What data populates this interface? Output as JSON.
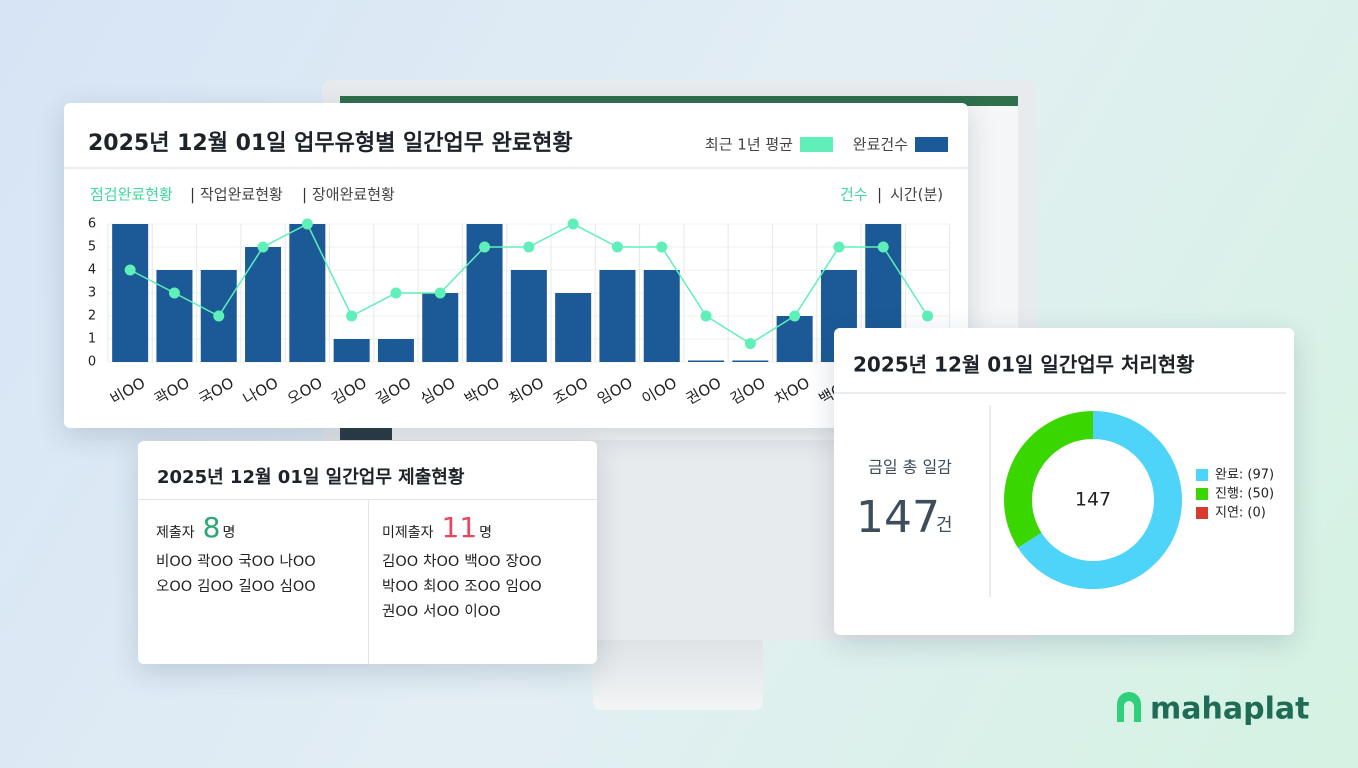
{
  "chart_data": [
    {
      "type": "bar",
      "title": "2025년 12월 01일 업무유형별 일간업무 완료현황",
      "tabs": [
        "점검완료현황",
        "작업완료현황",
        "장애완료현황"
      ],
      "units": [
        "건수",
        "시간(분)"
      ],
      "categories": [
        "비OO",
        "곽OO",
        "국OO",
        "나OO",
        "오OO",
        "김OO",
        "길OO",
        "심OO",
        "박OO",
        "최OO",
        "조OO",
        "임OO",
        "이OO",
        "권OO",
        "김OO",
        "차OO",
        "백OO",
        null,
        null
      ],
      "series": [
        {
          "name": "최근 1년 평균",
          "type": "line",
          "color": "#5ef0b8",
          "values": [
            4,
            3,
            2,
            5,
            6,
            2,
            3,
            3,
            5,
            5,
            6,
            5,
            5,
            2,
            0.8,
            2,
            5,
            5,
            2
          ]
        },
        {
          "name": "완료건수",
          "type": "bar",
          "color": "#1b5a96",
          "values": [
            6,
            4,
            4,
            5,
            6,
            1,
            1,
            3,
            6,
            4,
            3,
            4,
            4,
            0,
            0,
            2,
            4,
            6,
            null
          ]
        }
      ],
      "ylim": [
        0,
        6
      ],
      "yticks": [
        0,
        1,
        2,
        3,
        4,
        5,
        6
      ],
      "grid": true
    },
    {
      "type": "donut",
      "title": "2025년 12월 01일 일간업무 처리현황",
      "categories": [
        "완료",
        "진행",
        "지연"
      ],
      "values": [
        97,
        50,
        0
      ],
      "value_labels": [
        "완료: (97)",
        "진행: (50)",
        "지연: (0)"
      ],
      "colors": [
        "#4dd4f8",
        "#3ad600",
        "#d63b2e"
      ],
      "total": 147,
      "total_label": "금일 총 일감",
      "total_unit": "건"
    }
  ],
  "submission": {
    "title": "2025년 12월 01일 일간업무 제출현황",
    "submitted": {
      "label": "제출자",
      "count": 8,
      "unit": "명",
      "names": [
        [
          "비OO",
          "곽OO",
          "국OO",
          "나OO"
        ],
        [
          "오OO",
          "김OO",
          "길OO",
          "심OO"
        ]
      ]
    },
    "not_submitted": {
      "label": "미제출자",
      "count": 11,
      "unit": "명",
      "names": [
        [
          "김OO",
          "차OO",
          "백OO",
          "장OO"
        ],
        [
          "박OO",
          "최OO",
          "조OO",
          "임OO"
        ],
        [
          "권OO",
          "서OO",
          "이OO"
        ]
      ]
    }
  },
  "brand": "mahaplat"
}
